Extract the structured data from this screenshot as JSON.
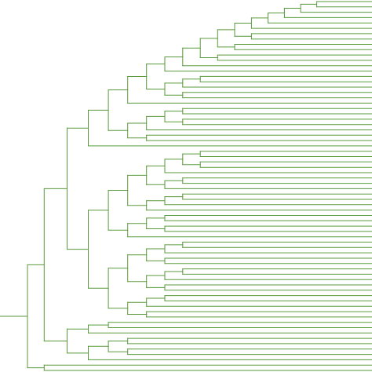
{
  "diagram": {
    "type": "phylogenetic-tree",
    "orientation": "left-to-right",
    "branch_color": "#5a9a3c",
    "background_color": "#ffffff",
    "labels_visible": false,
    "tree": [
      [
        [
          [
            [
              [
                [
                  [
                    [
                      [
                        [
                          [
                            [
                              [
                                [
                                  [
                                    "t",
                                    "t"
                                  ],
                                  "t"
                                ],
                                "t"
                              ],
                              "t"
                            ],
                            "t"
                          ],
                          [
                            "t",
                            "t"
                          ]
                        ],
                        [
                          "t",
                          "t"
                        ]
                      ],
                      [
                        "t",
                        "t"
                      ]
                    ],
                    "t"
                  ],
                  "t"
                ],
                [
                  [
                    [
                      "t",
                      "t"
                    ],
                    "t"
                  ],
                  [
                    "t",
                    "t"
                  ]
                ]
              ],
              "t"
            ],
            [
              [
                [
                  [
                    "t",
                    "t"
                  ],
                  [
                    "t",
                    "t"
                  ]
                ],
                "t"
              ],
              [
                "t",
                "t"
              ]
            ]
          ],
          "t"
        ],
        [
          [
            [
              [
                [
                  [
                    [
                      "t",
                      "t"
                    ],
                    [
                      "t",
                      "t"
                    ]
                  ],
                  "t"
                ],
                [
                  [
                    "t",
                    "t"
                  ],
                  "t"
                ]
              ],
              [
                [
                  [
                    "t",
                    "t"
                  ],
                  "t"
                ],
                "t"
              ]
            ],
            [
              [
                [
                  "t",
                  "t"
                ],
                [
                  "t",
                  "t"
                ]
              ],
              "t"
            ]
          ],
          [
            [
              [
                [
                  [
                    "t",
                    "t"
                  ],
                  "t"
                ],
                [
                  "t",
                  "t"
                ]
              ],
              [
                [
                  [
                    "t",
                    "t"
                  ],
                  "t"
                ],
                [
                  "t",
                  "t"
                ]
              ]
            ],
            [
              [
                [
                  "t",
                  "t"
                ],
                "t"
              ],
              [
                "t",
                "t"
              ]
            ]
          ]
        ]
      ],
      [
        [
          [
            "t",
            "t"
          ],
          "t"
        ],
        [
          [
            [
              "t",
              "t"
            ],
            [
              "t",
              "t"
            ]
          ],
          "t"
        ]
      ]
    ],
    "outgroup": [
      "t",
      "t"
    ]
  }
}
